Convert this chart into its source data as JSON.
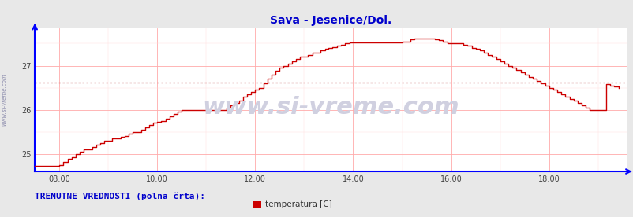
{
  "title": "Sava - Jesenice/Dol.",
  "title_color": "#0000cc",
  "title_fontsize": 10,
  "xlim_hours": [
    7.5,
    19.6
  ],
  "ylim": [
    24.6,
    27.85
  ],
  "yticks": [
    25,
    26,
    27
  ],
  "xticks_labels": [
    "08:00",
    "10:00",
    "12:00",
    "14:00",
    "16:00",
    "18:00"
  ],
  "xticks_values": [
    8.0,
    10.0,
    12.0,
    14.0,
    16.0,
    18.0
  ],
  "bg_color": "#e8e8e8",
  "plot_bg_color": "#ffffff",
  "line_color": "#cc0000",
  "grid_color_major": "#ffaaaa",
  "grid_color_minor": "#ffdddd",
  "axis_color": "#0000ff",
  "watermark": "www.si-vreme.com",
  "watermark_color": "#d0d0e0",
  "watermark_fontsize": 22,
  "legend_label": "temperatura [C]",
  "legend_color": "#cc0000",
  "footer_text": "TRENUTNE VREDNOSTI (polna črta):",
  "footer_color": "#0000cc",
  "footer_fontsize": 8,
  "avg_line_y": 26.62,
  "avg_line_color": "#bb4444",
  "sidebar_text": "www.si-vreme.com",
  "sidebar_color": "#8888aa",
  "time_data": [
    7.5,
    7.58,
    7.67,
    7.75,
    7.83,
    7.92,
    8.0,
    8.08,
    8.17,
    8.25,
    8.33,
    8.42,
    8.5,
    8.58,
    8.67,
    8.75,
    8.83,
    8.92,
    9.0,
    9.08,
    9.17,
    9.25,
    9.33,
    9.42,
    9.5,
    9.58,
    9.67,
    9.75,
    9.83,
    9.92,
    10.0,
    10.08,
    10.17,
    10.25,
    10.33,
    10.42,
    10.5,
    10.58,
    10.67,
    10.75,
    10.83,
    10.92,
    11.0,
    11.08,
    11.17,
    11.25,
    11.33,
    11.42,
    11.5,
    11.58,
    11.67,
    11.75,
    11.83,
    11.92,
    12.0,
    12.08,
    12.17,
    12.25,
    12.33,
    12.42,
    12.5,
    12.58,
    12.67,
    12.75,
    12.83,
    12.92,
    13.0,
    13.08,
    13.17,
    13.25,
    13.33,
    13.42,
    13.5,
    13.58,
    13.67,
    13.75,
    13.83,
    13.92,
    14.0,
    14.08,
    14.17,
    14.25,
    14.33,
    14.42,
    14.5,
    14.58,
    14.67,
    14.75,
    14.83,
    14.92,
    15.0,
    15.08,
    15.17,
    15.25,
    15.33,
    15.42,
    15.5,
    15.58,
    15.67,
    15.75,
    15.83,
    15.92,
    16.0,
    16.08,
    16.17,
    16.25,
    16.33,
    16.42,
    16.5,
    16.58,
    16.67,
    16.75,
    16.83,
    16.92,
    17.0,
    17.08,
    17.17,
    17.25,
    17.33,
    17.42,
    17.5,
    17.58,
    17.67,
    17.75,
    17.83,
    17.92,
    18.0,
    18.08,
    18.17,
    18.25,
    18.33,
    18.42,
    18.5,
    18.58,
    18.67,
    18.75,
    18.83,
    18.92,
    19.0,
    19.08,
    19.17,
    19.25,
    19.33,
    19.42
  ],
  "temp_data": [
    24.72,
    24.72,
    24.72,
    24.72,
    24.72,
    24.72,
    24.75,
    24.82,
    24.88,
    24.93,
    25.0,
    25.05,
    25.1,
    25.1,
    25.15,
    25.2,
    25.25,
    25.3,
    25.3,
    25.35,
    25.35,
    25.38,
    25.4,
    25.45,
    25.5,
    25.5,
    25.55,
    25.6,
    25.65,
    25.7,
    25.72,
    25.75,
    25.8,
    25.85,
    25.9,
    25.95,
    26.0,
    26.0,
    26.0,
    26.0,
    26.0,
    26.0,
    26.0,
    26.0,
    26.0,
    26.0,
    26.0,
    26.05,
    26.1,
    26.15,
    26.2,
    26.3,
    26.35,
    26.4,
    26.45,
    26.5,
    26.6,
    26.7,
    26.8,
    26.88,
    26.95,
    27.0,
    27.05,
    27.1,
    27.15,
    27.2,
    27.2,
    27.25,
    27.3,
    27.3,
    27.35,
    27.38,
    27.4,
    27.42,
    27.45,
    27.48,
    27.5,
    27.52,
    27.52,
    27.52,
    27.52,
    27.52,
    27.52,
    27.52,
    27.52,
    27.52,
    27.52,
    27.52,
    27.52,
    27.52,
    27.55,
    27.55,
    27.6,
    27.62,
    27.62,
    27.62,
    27.62,
    27.62,
    27.6,
    27.58,
    27.55,
    27.5,
    27.5,
    27.5,
    27.5,
    27.48,
    27.45,
    27.4,
    27.38,
    27.35,
    27.3,
    27.25,
    27.2,
    27.15,
    27.1,
    27.05,
    27.0,
    26.95,
    26.9,
    26.85,
    26.8,
    26.75,
    26.7,
    26.65,
    26.6,
    26.55,
    26.5,
    26.45,
    26.4,
    26.35,
    26.3,
    26.25,
    26.2,
    26.15,
    26.1,
    26.05,
    26.0,
    26.0,
    26.0,
    26.0,
    26.58,
    26.55,
    26.52,
    26.5
  ]
}
